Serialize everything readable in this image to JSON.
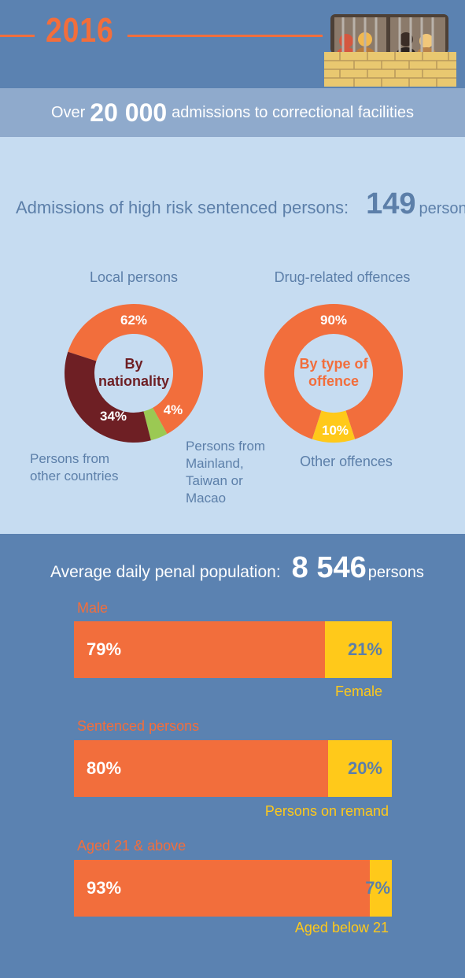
{
  "header": {
    "year": "2016"
  },
  "banner": {
    "pre": "Over",
    "number": "20 000",
    "post": "admissions to correctional facilities"
  },
  "high_risk": {
    "label": "Admissions of high risk sentenced persons:",
    "number": "149",
    "unit": "persons"
  },
  "donut_nationality": {
    "center_line1": "By",
    "center_line2": "nationality",
    "caption_local": "Local persons",
    "caption_other_countries_1": "Persons from",
    "caption_other_countries_2": "other countries",
    "caption_mainland_1": "Persons from",
    "caption_mainland_2": "Mainland,",
    "caption_mainland_3": "Taiwan or",
    "caption_mainland_4": "Macao",
    "labels": [
      "62%",
      "34%",
      "4%"
    ]
  },
  "donut_offence": {
    "center_line1": "By type of",
    "center_line2": "offence",
    "caption_drug": "Drug-related offences",
    "caption_other": "Other offences",
    "labels": [
      "90%",
      "10%"
    ]
  },
  "penal": {
    "label": "Average daily penal population:",
    "number": "8 546",
    "unit": "persons"
  },
  "bars": [
    {
      "title": "Male",
      "main_label": "79%",
      "rest_label": "21%",
      "foot": "Female"
    },
    {
      "title": "Sentenced persons",
      "main_label": "80%",
      "rest_label": "20%",
      "foot": "Persons on remand"
    },
    {
      "title": "Aged 21 & above",
      "main_label": "93%",
      "rest_label": "7%",
      "foot": "Aged below 21"
    }
  ],
  "colors": {
    "orange": "#f26e3c",
    "maroon": "#6e1f24",
    "green": "#9bc953",
    "yellow": "#ffc91a",
    "blue_text": "#5c7fa9",
    "light_bg": "#c6dcf1",
    "dark_bg": "#5b82b1",
    "banner_bg": "#8faacc"
  },
  "chart_data": [
    {
      "type": "pie",
      "categories": [
        "Local persons",
        "Persons from other countries",
        "Persons from Mainland, Taiwan or Macao"
      ],
      "values": [
        62,
        34,
        4
      ],
      "unit": "%"
    },
    {
      "type": "pie",
      "categories": [
        "Drug-related offences",
        "Other offences"
      ],
      "values": [
        90,
        10
      ],
      "unit": "%"
    },
    {
      "type": "bar",
      "orientation": "horizontal-stacked",
      "categories": [
        "Male / Female",
        "Sentenced persons / Persons on remand",
        "Aged 21 & above / Aged below 21"
      ],
      "series": [
        {
          "name": "Male",
          "values": [
            79,
            80,
            93
          ]
        },
        {
          "name": "Female",
          "values": [
            21,
            20,
            7
          ]
        }
      ],
      "xlim": [
        0,
        100
      ],
      "unit": "%"
    }
  ]
}
